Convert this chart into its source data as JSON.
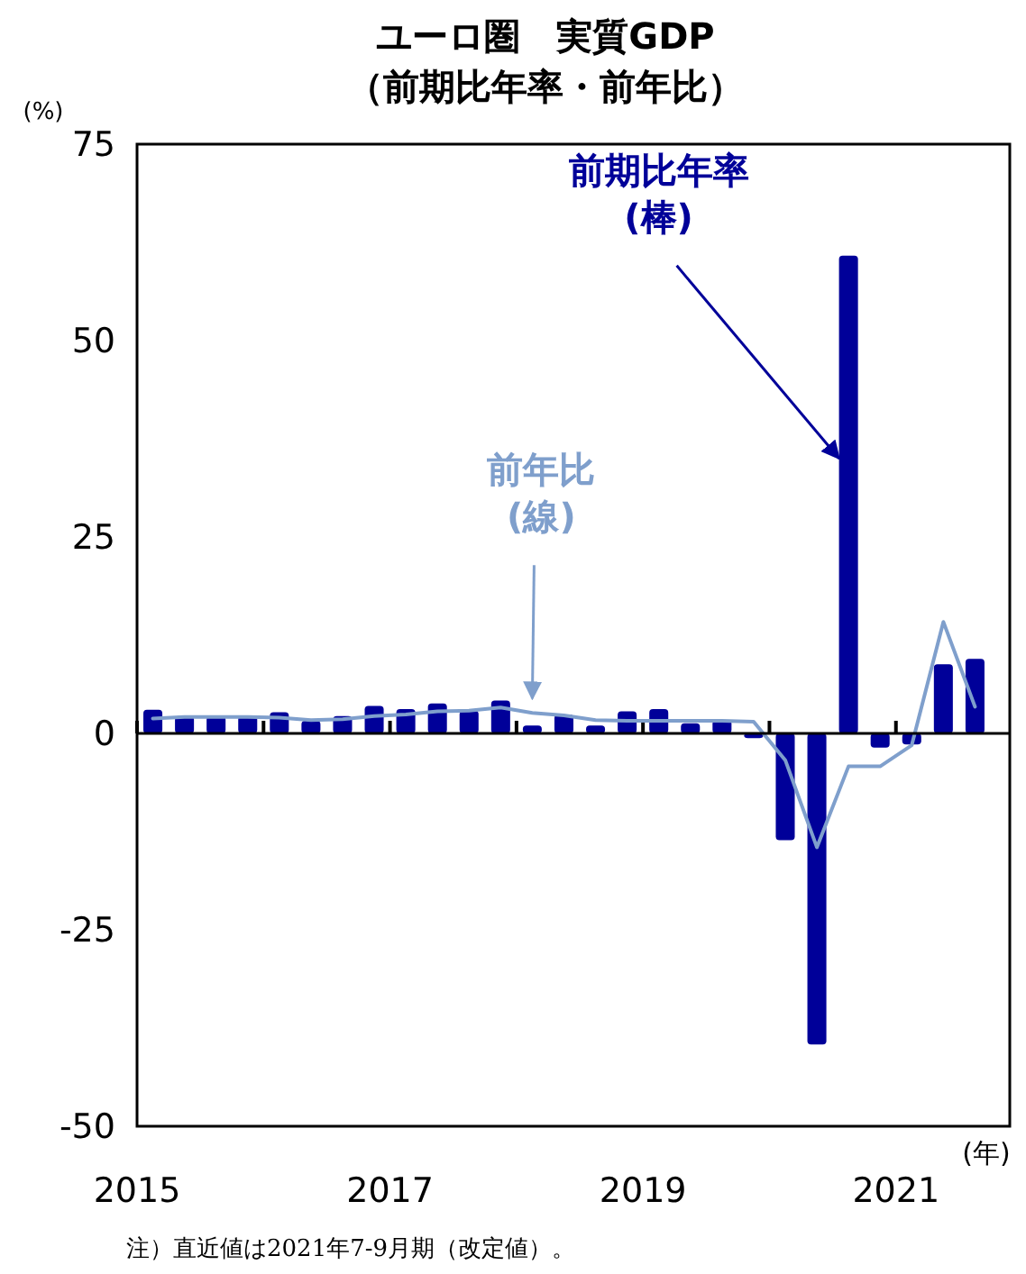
{
  "chart_data": {
    "type": "bar",
    "title": "ユーロ圏　実質GDP",
    "subtitle": "（前期比年率・前年比）",
    "ylabel": "(%)",
    "xlabel": "(年)",
    "x": [
      2015.125,
      2015.375,
      2015.625,
      2015.875,
      2016.125,
      2016.375,
      2016.625,
      2016.875,
      2017.125,
      2017.375,
      2017.625,
      2017.875,
      2018.125,
      2018.375,
      2018.625,
      2018.875,
      2019.125,
      2019.375,
      2019.625,
      2019.875,
      2020.125,
      2020.375,
      2020.625,
      2020.875,
      2021.125,
      2021.375,
      2021.625
    ],
    "series": [
      {
        "color": "#000099",
        "values": [
          3.0,
          2.2,
          2.2,
          2.2,
          2.7,
          1.6,
          2.2,
          3.5,
          3.1,
          3.8,
          2.9,
          4.2,
          1.0,
          2.4,
          1.0,
          2.8,
          3.1,
          1.3,
          1.7,
          -0.6,
          -13.6,
          -39.6,
          60.8,
          -1.8,
          -1.4,
          8.8,
          9.5
        ]
      },
      {
        "type": "line",
        "color": "#7f9fcc",
        "values": [
          1.9,
          2.1,
          2.1,
          2.1,
          2.0,
          1.7,
          1.8,
          2.2,
          2.4,
          2.8,
          2.9,
          3.3,
          2.6,
          2.3,
          1.7,
          1.6,
          1.6,
          1.6,
          1.6,
          1.5,
          -3.4,
          -14.5,
          -4.2,
          -4.2,
          -1.5,
          14.2,
          3.4
        ]
      }
    ],
    "xlim": [
      2015,
      2021.9
    ],
    "xticks": [
      2015,
      {
        "value": 2016,
        "label": null
      },
      2017,
      {
        "value": 2018,
        "label": null
      },
      2019,
      {
        "value": 2020,
        "label": null
      },
      2021
    ],
    "ylim": [
      -50,
      75
    ],
    "yticks": [
      -50,
      -25,
      0,
      25,
      50,
      75
    ],
    "annotations": [
      {
        "text": "前期比年率\n(棒)",
        "x": 2020.55,
        "y": 35
      },
      {
        "text": "前年比\n(線)",
        "x": 2018.125,
        "y": 2.6
      },
      "注）直近値は2021年7-9月期（改定値）。"
    ]
  }
}
